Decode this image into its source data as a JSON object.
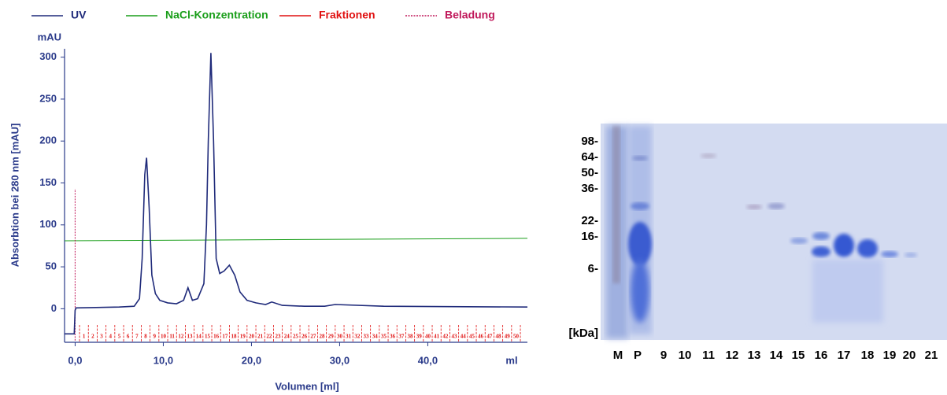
{
  "chart_data": {
    "type": "line",
    "y_title": "Absorbtion bei 280 nm [mAU]",
    "x_title": "Volumen [ml]",
    "y_unit": "mAU",
    "x_unit": "ml",
    "xlim": [
      -1.2,
      51.3
    ],
    "ylim": [
      -40,
      310
    ],
    "xticks": [
      {
        "value": 0,
        "label": "0,0"
      },
      {
        "value": 10,
        "label": "10,0"
      },
      {
        "value": 20,
        "label": "20,0"
      },
      {
        "value": 30,
        "label": "30,0"
      },
      {
        "value": 40,
        "label": "40,0"
      }
    ],
    "yticks": [
      0,
      50,
      100,
      150,
      200,
      250,
      300
    ],
    "series": [
      {
        "name": "UV",
        "color": "#1f2a7a",
        "x": [
          -1.2,
          -0.1,
          0,
          0.1,
          5,
          6.7,
          7.3,
          7.6,
          7.9,
          8.1,
          8.4,
          8.7,
          9.1,
          9.6,
          10.5,
          11.5,
          12.3,
          12.8,
          13.3,
          13.9,
          14.6,
          14.9,
          15.1,
          15.4,
          15.7,
          16.0,
          16.4,
          16.9,
          17.5,
          18.1,
          18.7,
          19.5,
          20.5,
          21.6,
          22.3,
          23.5,
          26,
          28.3,
          29.5,
          35,
          51.3
        ],
        "values": [
          -30,
          -30,
          -2,
          1,
          2,
          3,
          12,
          60,
          160,
          180,
          120,
          40,
          18,
          10,
          7,
          6,
          10,
          25,
          10,
          12,
          30,
          100,
          200,
          305,
          200,
          60,
          42,
          45,
          52,
          40,
          20,
          10,
          7,
          5,
          8,
          4,
          3,
          3,
          5,
          3,
          2
        ]
      },
      {
        "name": "NaCl-Konzentration",
        "color": "#1a9e1a",
        "x": [
          -1.2,
          51.3
        ],
        "values": [
          81,
          84
        ]
      },
      {
        "name": "Fraktionen",
        "color": "#e01010"
      },
      {
        "name": "Beladung",
        "color": "#c0185a",
        "x": [
          0,
          0
        ],
        "values": [
          -38,
          143
        ]
      }
    ],
    "fraction_edges": [
      0.5,
      1.5,
      2.5,
      3.5,
      4.5,
      5.5,
      6.5,
      7.5,
      8.5,
      9.5,
      10.5,
      11.5,
      12.5,
      13.5,
      14.5,
      15.5,
      16.5,
      17.5,
      18.5,
      19.5,
      20.5,
      21.5,
      22.5,
      23.5,
      24.5,
      25.5,
      26.5,
      27.5,
      28.5,
      29.5,
      30.5,
      31.5,
      32.5,
      33.5,
      34.5,
      35.5,
      36.5,
      37.5,
      38.5,
      39.5,
      40.5,
      41.5,
      42.5,
      43.5,
      44.5,
      45.5,
      46.5,
      47.5,
      48.5,
      49.5,
      50.5
    ],
    "fraction_labels": [
      1,
      2,
      3,
      4,
      5,
      6,
      7,
      8,
      9,
      10,
      11,
      12,
      13,
      14,
      15,
      16,
      17,
      18,
      19,
      20,
      21,
      22,
      23,
      24,
      25,
      26,
      27,
      28,
      29,
      30,
      31,
      32,
      33,
      34,
      35,
      36,
      37,
      38,
      39,
      40,
      41,
      42,
      43,
      44,
      45,
      46,
      47,
      48,
      49,
      50
    ]
  },
  "gel": {
    "marker_labels": [
      "98-",
      "64-",
      "50-",
      "36-",
      "22-",
      "16-",
      "6-"
    ],
    "unit": "[kDa]",
    "lanes": [
      "M",
      "P",
      "9",
      "10",
      "11",
      "12",
      "13",
      "14",
      "15",
      "16",
      "17",
      "18",
      "19",
      "20",
      "21"
    ]
  }
}
